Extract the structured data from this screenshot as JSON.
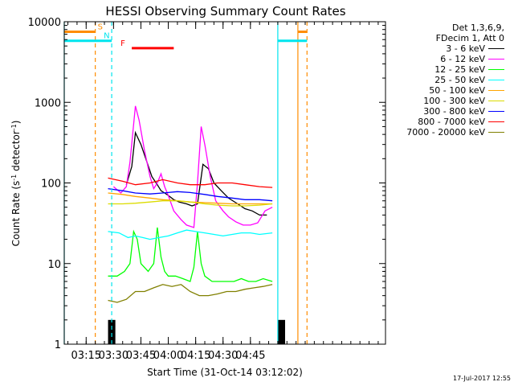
{
  "chart_data": {
    "type": "line",
    "title": "HESSI Observing Summary Count Rates",
    "xlabel": "Start Time (31-Oct-14 03:12:02)",
    "ylabel_parts": [
      "Count Rate (s",
      "-1",
      " detector",
      "-1",
      ")"
    ],
    "yscale": "log",
    "ylim": [
      1,
      10000
    ],
    "y_ticks": [
      1,
      10,
      100,
      1000,
      10000
    ],
    "y_tick_labels": [
      "1",
      "10",
      "100",
      "1000",
      "10000"
    ],
    "x_range_min": [
      183,
      359
    ],
    "x_ticks_min": [
      195,
      210,
      225,
      240,
      255,
      270,
      285
    ],
    "x_tick_labels": [
      "03:15",
      "03:30",
      "03:45",
      "04:00",
      "04:15",
      "04:30",
      "04:45"
    ],
    "legend_header": [
      "Det 1,3,6,9,",
      "FDecim 1, Att 0"
    ],
    "series": [
      {
        "name": "3 - 6 keV",
        "color": "#000000",
        "x": [
          207,
          212,
          217,
          220,
          222,
          225,
          228,
          231,
          234,
          236,
          238,
          240,
          243,
          246,
          250,
          253,
          256,
          259,
          262,
          265,
          269,
          273,
          278,
          282,
          286,
          290,
          294
        ],
        "y": [
          null,
          null,
          95,
          160,
          420,
          300,
          190,
          120,
          95,
          80,
          75,
          70,
          62,
          58,
          55,
          52,
          55,
          170,
          150,
          100,
          80,
          65,
          55,
          48,
          45,
          40,
          40
        ]
      },
      {
        "name": "6 - 12 keV",
        "color": "#ff00ff",
        "x": [
          207,
          210,
          214,
          217,
          219,
          222,
          224,
          227,
          230,
          232,
          234,
          236,
          238,
          240,
          243,
          247,
          250,
          254,
          256,
          258,
          260,
          263,
          266,
          270,
          273,
          277,
          281,
          285,
          289,
          293,
          297
        ],
        "y": [
          null,
          90,
          75,
          90,
          180,
          900,
          600,
          250,
          120,
          85,
          100,
          130,
          90,
          70,
          45,
          35,
          30,
          28,
          100,
          500,
          300,
          120,
          60,
          45,
          38,
          33,
          30,
          30,
          32,
          45,
          50
        ]
      },
      {
        "name": "12 - 25 keV",
        "color": "#00ff00",
        "x": [
          207,
          212,
          216,
          219,
          221,
          223,
          225,
          229,
          232,
          234,
          236,
          238,
          240,
          244,
          248,
          252,
          254,
          256,
          258,
          260,
          264,
          268,
          272,
          276,
          280,
          284,
          288,
          292,
          297
        ],
        "y": [
          7,
          7,
          8,
          10,
          25,
          20,
          10,
          8,
          10,
          28,
          12,
          8,
          7,
          7,
          6.5,
          6,
          9,
          25,
          10,
          7,
          6,
          6,
          6,
          6,
          6.5,
          6,
          6,
          6.5,
          6
        ]
      },
      {
        "name": "25 - 50 keV",
        "color": "#00ffff",
        "x": [
          207,
          213,
          218,
          222,
          226,
          230,
          235,
          240,
          245,
          250,
          255,
          260,
          265,
          270,
          275,
          280,
          285,
          290,
          297
        ],
        "y": [
          25,
          24,
          21,
          22,
          21,
          20,
          21,
          22,
          24,
          26,
          25,
          24,
          23,
          22,
          23,
          24,
          24,
          23,
          24
        ]
      },
      {
        "name": "50 - 100 keV",
        "color": "#ffa500",
        "x": [
          207,
          215,
          222,
          230,
          237,
          245,
          252,
          260,
          267,
          275,
          282,
          290,
          297
        ],
        "y": [
          75,
          72,
          68,
          65,
          62,
          60,
          58,
          57,
          56,
          55,
          55,
          55,
          55
        ]
      },
      {
        "name": "100 - 300 keV",
        "color": "#dcdc00",
        "x": [
          207,
          215,
          222,
          230,
          237,
          245,
          252,
          260,
          267,
          275,
          282,
          290,
          297
        ],
        "y": [
          55,
          55,
          56,
          58,
          60,
          60,
          58,
          55,
          53,
          52,
          52,
          53,
          55
        ]
      },
      {
        "name": "300 - 800 keV",
        "color": "#0000ff",
        "x": [
          207,
          215,
          222,
          230,
          237,
          245,
          252,
          260,
          267,
          275,
          282,
          290,
          297
        ],
        "y": [
          85,
          80,
          75,
          73,
          75,
          78,
          76,
          72,
          68,
          65,
          62,
          62,
          60
        ]
      },
      {
        "name": "800 - 7000 keV",
        "color": "#ff0000",
        "x": [
          207,
          215,
          222,
          230,
          237,
          245,
          252,
          260,
          267,
          275,
          282,
          290,
          297
        ],
        "y": [
          115,
          105,
          95,
          100,
          110,
          100,
          95,
          95,
          100,
          100,
          95,
          90,
          88
        ]
      },
      {
        "name": "7000 - 20000 keV",
        "color": "#808000",
        "x": [
          207,
          212,
          217,
          222,
          227,
          232,
          237,
          242,
          247,
          252,
          257,
          262,
          267,
          272,
          277,
          282,
          287,
          292,
          297
        ],
        "y": [
          3.5,
          3.3,
          3.6,
          4.5,
          4.5,
          5,
          5.5,
          5.2,
          5.5,
          4.5,
          4,
          4,
          4.2,
          4.5,
          4.5,
          4.8,
          5,
          5.2,
          5.5
        ]
      }
    ],
    "vertical_markers": [
      {
        "label": "S",
        "x": 200,
        "color": "#ff8c00",
        "style": "dashed"
      },
      {
        "label": "",
        "x": 209,
        "color": "#00e5ee",
        "style": "dashed"
      },
      {
        "label": "",
        "x": 300,
        "color": "#00e5ee",
        "style": "solid"
      },
      {
        "label": "",
        "x": 311,
        "color": "#ff8c00",
        "style": "solid"
      },
      {
        "label": "",
        "x": 316,
        "color": "#ff8c00",
        "style": "dashed"
      },
      {
        "label": "",
        "x": 183,
        "color": "#00e5ee",
        "style": "solid"
      }
    ],
    "band_markers": [
      {
        "label": "S",
        "x_from": 183,
        "x_to": 200,
        "y": 7500,
        "color": "#ff8c00"
      },
      {
        "label": "N",
        "x_from": 183,
        "x_to": 209,
        "y": 5800,
        "color": "#00e5ee"
      },
      {
        "label": "",
        "x_from": 300,
        "x_to": 316,
        "y": 5800,
        "color": "#00e5ee"
      },
      {
        "label": "",
        "x_from": 311,
        "x_to": 316,
        "y": 7500,
        "color": "#ff8c00"
      },
      {
        "label": "F",
        "x_from": 220,
        "x_to": 243,
        "y": 4700,
        "color": "#ff0000"
      }
    ],
    "attenuator_blocks": [
      {
        "x_from": 207,
        "x_to": 211,
        "y_top": 2
      },
      {
        "x_from": 300,
        "x_to": 304,
        "y_top": 2
      }
    ],
    "timestamp": "17-Jul-2017 12:55"
  }
}
